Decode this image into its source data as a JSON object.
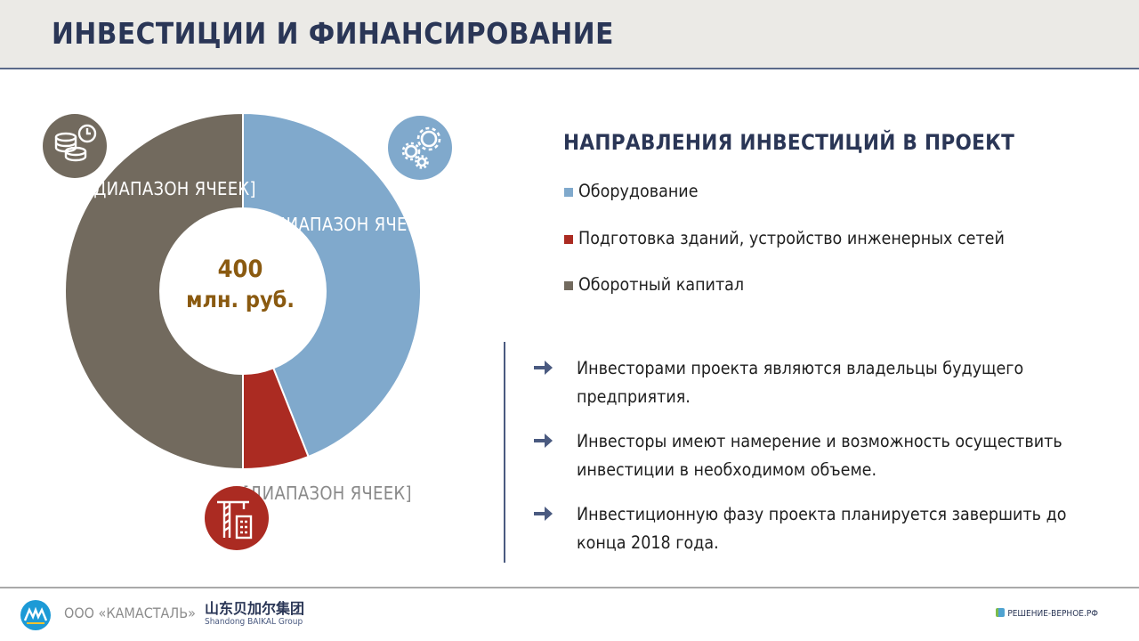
{
  "header": {
    "title": "ИНВЕСТИЦИИ И ФИНАНСИРОВАНИЕ"
  },
  "chart_data": {
    "type": "pie",
    "categories": [
      "Оборудование",
      "Подготовка зданий, устройство инженерных сетей",
      "Оборотный капитал"
    ],
    "values": [
      44,
      6,
      50
    ],
    "colors": [
      "#80a9cc",
      "#ab2b22",
      "#726a5e"
    ],
    "segment_labels": [
      "[ДИАПАЗОН ЯЧЕЕК]",
      "[ДИАПАЗОН ЯЧЕЕК]",
      "[ДИАПАЗОН ЯЧЕЕК]"
    ],
    "center": {
      "total": "400",
      "unit": "млн. руб."
    }
  },
  "icons": {
    "equipment": "gears-icon",
    "buildings": "construction-crane-icon",
    "capital": "coins-clock-icon"
  },
  "legend": {
    "title": "НАПРАВЛЕНИЯ ИНВЕСТИЦИЙ В ПРОЕКТ",
    "items": [
      {
        "label": "Оборудование",
        "color": "#80a9cc"
      },
      {
        "label": "Подготовка зданий, устройство инженерных сетей",
        "color": "#ab2b22"
      },
      {
        "label": "Оборотный капитал",
        "color": "#726a5e"
      }
    ]
  },
  "bullets": [
    "Инвесторами проекта являются владельцы будущего предприятия.",
    "Инвесторы имеют намерение и возможность осуществить инвестиции в необходимом объеме.",
    "Инвестиционную фазу проекта планируется завершить до конца 2018 года."
  ],
  "footer": {
    "company": "ООО «КАМАСТАЛЬ»",
    "partner_cn": "山东贝加尔集团",
    "partner_en": "Shandong BAIKAL Group",
    "brand": "РЕШЕНИЕ-ВЕРНОЕ.РФ"
  }
}
